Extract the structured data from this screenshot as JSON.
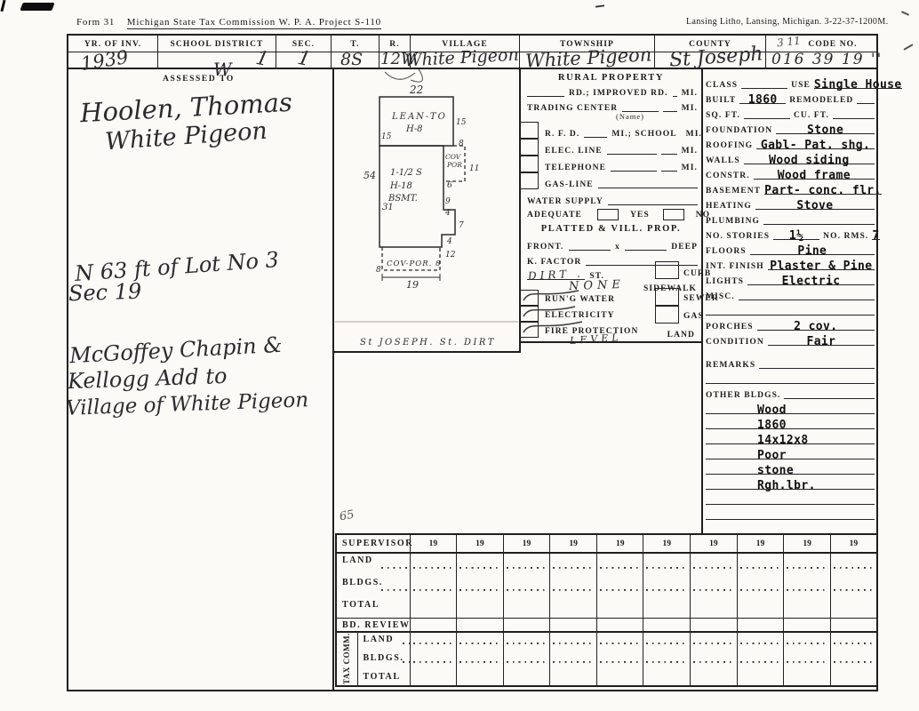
{
  "page": {
    "form_label": "Form 31",
    "form_title": "Michigan  State  Tax  Commission   W. P. A.   Project  S-110",
    "printer_note": "Lansing  Litho,  Lansing,  Michigan.   3-22-37-1200M."
  },
  "header": {
    "yr_label": "YR. OF INV.",
    "yr_value": "1939",
    "district_label": "SCHOOL DISTRICT",
    "district_value": "1",
    "district_mark": "W",
    "sec_label": "SEC.",
    "sec_value": "1",
    "t_label": "T.",
    "t_value": "8S",
    "r_label": "R.",
    "r_value": "12W",
    "village_label": "VILLAGE",
    "village_value": "White Pigeon",
    "township_label": "TOWNSHIP",
    "township_value": "White Pigeon",
    "county_label": "COUNTY",
    "county_value": "St Joseph",
    "code_label": "CODE NO.",
    "code_value": "016 39 19 ''",
    "code_annotation": "3 11"
  },
  "assessed": {
    "label": "ASSESSED TO",
    "name": "Hoolen, Thomas",
    "place": "White Pigeon",
    "legal_1": "N 63 ft of Lot No 3",
    "legal_2": "Sec 19",
    "plat_1": "McGoffey Chapin &",
    "plat_2": "Kellogg Add to",
    "plat_3": "Village of White Pigeon"
  },
  "sketch": {
    "top_width": "22",
    "lean_to_label": "LEAN-TO",
    "lean_to_height": "H-8",
    "left_upper": "15",
    "right_upper": "15",
    "seg_8": "8",
    "cov_por_upper_1": "COV",
    "cov_por_upper_2": "POR",
    "cov_por_upper_len": "11",
    "seg_6": "6",
    "left_total": "54",
    "left_inner": "31",
    "main_label_1": "1-1/2 S",
    "main_label_2": "H-18",
    "main_label_3": "BSMT.",
    "seg_9": "9",
    "seg_4a": "4",
    "seg_7": "7",
    "seg_4b": "4",
    "seg_12": "12",
    "cov_por_lower": "COV-POR. 8",
    "cov_por_lower_left": "8",
    "bottom_width": "19",
    "street": "St JOSEPH. St. DIRT",
    "note": "65"
  },
  "rural": {
    "title": "RURAL PROPERTY",
    "rd_label": "RD.;  IMPROVED  RD.",
    "mi": "MI.",
    "trading_label": "TRADING  CENTER",
    "name_note": "(Name)",
    "rfd_label": "R. F. D.",
    "school_label": "MI.;  SCHOOL",
    "elec_label": "ELEC.  LINE",
    "tel_label": "TELEPHONE",
    "gasline_label": "GAS-LINE",
    "water_label": "WATER  SUPPLY",
    "adequate_label": "ADEQUATE",
    "yes": "YES",
    "no": "NO"
  },
  "platted": {
    "title": "PLATTED  &  VILL.  PROP.",
    "front": "FRONT.",
    "x": "x",
    "deep": "DEEP",
    "k_factor": "K.  FACTOR",
    "street_value": "DIRT .",
    "st": "ST.",
    "curb": "CURB",
    "sidewalk_value": "NONE",
    "sidewalk": "SIDEWALK",
    "rung_water": "RUN'G  WATER",
    "sewer": "SEWER",
    "electricity": "ELECTRICITY",
    "gas": "GAS",
    "fire": "FIRE  PROTECTION",
    "fire_note": "LEVEL",
    "land": "LAND"
  },
  "details": {
    "rows": [
      {
        "k": "lvlv",
        "l1": "CLASS",
        "v1": "",
        "l2": "USE",
        "v2": "Single House"
      },
      {
        "k": "lvlv",
        "l1": "BUILT",
        "v1": "1860",
        "l2": "REMODELED",
        "v2": ""
      },
      {
        "k": "lvlv",
        "l1": "SQ. FT.",
        "v1": "",
        "l2": "CU. FT.",
        "v2": ""
      },
      {
        "k": "lv",
        "l1": "FOUNDATION",
        "v1": "Stone"
      },
      {
        "k": "lv",
        "l1": "ROOFING",
        "v1": "Gabl- Pat. shg."
      },
      {
        "k": "lv",
        "l1": "WALLS",
        "v1": "Wood siding"
      },
      {
        "k": "lv",
        "l1": "CONSTR.",
        "v1": "Wood frame"
      },
      {
        "k": "lv",
        "l1": "BASEMENT",
        "v1": "Part- conc. flr."
      },
      {
        "k": "lv",
        "l1": "HEATING",
        "v1": "Stove"
      },
      {
        "k": "lv",
        "l1": "PLUMBING",
        "v1": ""
      },
      {
        "k": "lvlv",
        "l1": "NO. STORIES",
        "v1": "1½",
        "l2": "NO. RMS.",
        "v2": "7"
      },
      {
        "k": "lv",
        "l1": "FLOORS",
        "v1": "Pine"
      },
      {
        "k": "lv",
        "l1": "INT. FINISH",
        "v1": "Plaster & Pine"
      },
      {
        "k": "lv",
        "l1": "LIGHTS",
        "v1": "Electric"
      },
      {
        "k": "lv",
        "l1": "MISC.",
        "v1": ""
      },
      {
        "k": "blank"
      },
      {
        "k": "lv",
        "l1": "PORCHES",
        "v1": "2 cov."
      },
      {
        "k": "lv",
        "l1": "CONDITION",
        "v1": "Fair"
      },
      {
        "k": "gap"
      },
      {
        "k": "lv",
        "l1": "REMARKS",
        "v1": ""
      },
      {
        "k": "blank"
      },
      {
        "k": "lv",
        "l1": "OTHER BLDGS.",
        "v1": ""
      },
      {
        "k": "entry",
        "v1": "Wood"
      },
      {
        "k": "entry",
        "v1": "1860"
      },
      {
        "k": "entry",
        "v1": "14x12x8"
      },
      {
        "k": "entry",
        "v1": "Poor"
      },
      {
        "k": "entry",
        "v1": "stone"
      },
      {
        "k": "entry",
        "v1": "Rgh.lbr."
      },
      {
        "k": "blank"
      },
      {
        "k": "blank"
      }
    ]
  },
  "assessment_table": {
    "supervisor": "SUPERVISOR",
    "years": [
      "19",
      "19",
      "19",
      "19",
      "19",
      "19",
      "19",
      "19",
      "19",
      "19"
    ],
    "rows": [
      "LAND",
      "BLDGS.",
      "TOTAL"
    ],
    "bd_review": "BD. REVIEW",
    "tax_label": "TAX COMM.",
    "tax_rows": [
      "LAND",
      "BLDGS.",
      "TOTAL"
    ]
  }
}
